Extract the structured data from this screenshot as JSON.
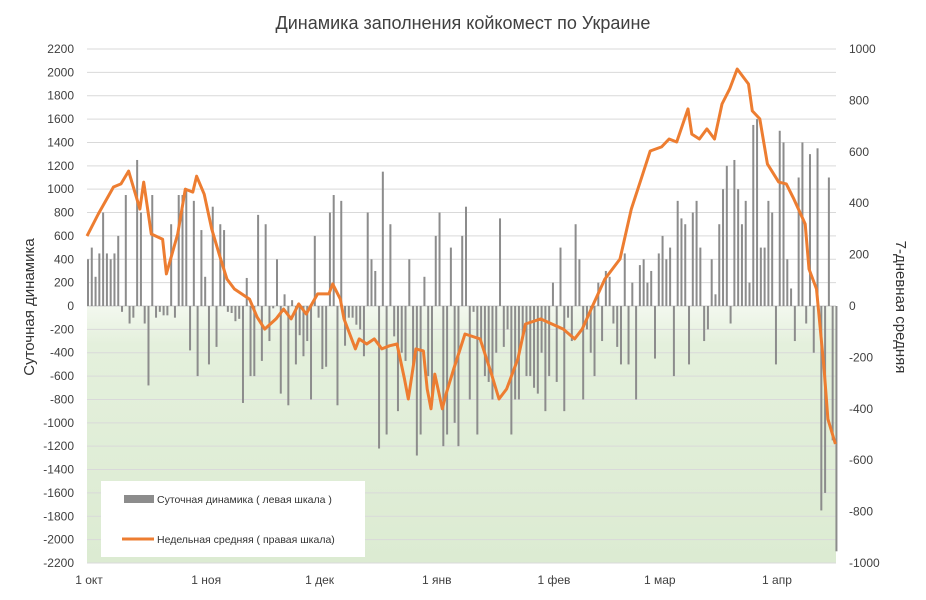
{
  "chart_data": {
    "type": "bar+line",
    "title": "Динамика заполнения койкомест по Украине",
    "ylabel_left": "Суточная динамика",
    "ylabel_right": "7-дневная средняя",
    "ylim_left": [
      -2200,
      2200
    ],
    "ylim_right": [
      -1000,
      1000
    ],
    "yticks_left": [
      "2200",
      "2000",
      "1800",
      "1600",
      "1400",
      "1200",
      "1000",
      "800",
      "600",
      "400",
      "200",
      "0",
      "-200",
      "-400",
      "-600",
      "-800",
      "-1000",
      "-1200",
      "-1400",
      "-1600",
      "-1800",
      "-2000",
      "-2200"
    ],
    "yticks_right": [
      "1000",
      "800",
      "600",
      "400",
      "200",
      "0",
      "-200",
      "-400",
      "-600",
      "-800",
      "-1000"
    ],
    "xticks": [
      {
        "label": "1 окт",
        "date": "10-01"
      },
      {
        "label": "1 ноя",
        "date": "11-01"
      },
      {
        "label": "1 дек",
        "date": "12-01"
      },
      {
        "label": "1 янв",
        "date": "01-01"
      },
      {
        "label": "1 фев",
        "date": "02-01"
      },
      {
        "label": "1 мар",
        "date": "03-01"
      },
      {
        "label": "1 апр",
        "date": "04-01"
      }
    ],
    "grid": true,
    "legend_position": "bottom-left",
    "colors": {
      "bars": "#8c8c8c",
      "line": "#ed7d31",
      "negative_fill": "#e2efda"
    },
    "series": [
      {
        "name": "Суточная динамика ( левая шкала )",
        "axis": "left",
        "type": "bar",
        "first_date": "10-01",
        "values": [
          400,
          500,
          250,
          450,
          800,
          450,
          400,
          450,
          600,
          -50,
          950,
          -150,
          -100,
          1250,
          800,
          -150,
          -680,
          950,
          -100,
          -50,
          -80,
          -80,
          700,
          -100,
          950,
          950,
          1000,
          -380,
          900,
          -600,
          650,
          250,
          -500,
          850,
          -350,
          700,
          650,
          -50,
          -60,
          -130,
          -110,
          -830,
          240,
          -600,
          -600,
          780,
          -470,
          700,
          -300,
          -20,
          400,
          -750,
          100,
          -850,
          50,
          -500,
          -250,
          -430,
          -300,
          -800,
          600,
          -100,
          -540,
          -520,
          800,
          950,
          -850,
          900,
          -340,
          -100,
          -100,
          -160,
          -200,
          -430,
          800,
          400,
          300,
          -1220,
          1150,
          -1100,
          700,
          -260,
          -900,
          -400,
          -470,
          400,
          -550,
          -1280,
          -1100,
          250,
          -600,
          -850,
          600,
          800,
          -1200,
          -1100,
          500,
          -1000,
          -1200,
          600,
          850,
          -800,
          -50,
          -1100,
          -300,
          -600,
          -650,
          -800,
          -400,
          750,
          -350,
          -200,
          -1100,
          -800,
          -800,
          -250,
          -600,
          -600,
          -700,
          -750,
          -400,
          -900,
          -600,
          200,
          -650,
          500,
          -900,
          -100,
          -300,
          700,
          400,
          -800,
          -200,
          -400,
          -600,
          200,
          -300,
          300,
          250,
          -150,
          -350,
          -500,
          450,
          -500,
          200,
          -800,
          350,
          400,
          200,
          300,
          -450,
          450,
          600,
          400,
          500,
          -600,
          900,
          750,
          700,
          -500,
          800,
          900,
          500,
          -300,
          -200,
          400,
          100,
          700,
          1000,
          1200,
          -150,
          1250,
          1000,
          700,
          900,
          200,
          1550,
          1600,
          500,
          500,
          900,
          800,
          -500,
          1500,
          1400,
          400,
          150,
          -300,
          1100,
          1400,
          -150,
          1300,
          -400,
          1350,
          -1750,
          -1600,
          1100,
          -1150,
          -2100
        ]
      },
      {
        "name": "Недельная средняя ( правая шкала)",
        "axis": "right",
        "type": "line",
        "points": [
          [
            "10-01",
            272
          ],
          [
            "10-04",
            358
          ],
          [
            "10-08",
            463
          ],
          [
            "10-10",
            475
          ],
          [
            "10-12",
            525
          ],
          [
            "10-15",
            377
          ],
          [
            "10-16",
            482
          ],
          [
            "10-18",
            280
          ],
          [
            "10-21",
            260
          ],
          [
            "10-22",
            125
          ],
          [
            "10-25",
            280
          ],
          [
            "10-27",
            455
          ],
          [
            "10-29",
            443
          ],
          [
            "10-30",
            505
          ],
          [
            "11-01",
            435
          ],
          [
            "11-03",
            300
          ],
          [
            "11-05",
            200
          ],
          [
            "11-07",
            105
          ],
          [
            "11-09",
            66
          ],
          [
            "11-13",
            27
          ],
          [
            "11-15",
            -43
          ],
          [
            "11-17",
            -90
          ],
          [
            "11-20",
            -50
          ],
          [
            "11-22",
            -12
          ],
          [
            "11-24",
            -50
          ],
          [
            "11-26",
            8
          ],
          [
            "11-28",
            -31
          ],
          [
            "12-01",
            47
          ],
          [
            "12-04",
            47
          ],
          [
            "12-05",
            86
          ],
          [
            "12-07",
            27
          ],
          [
            "12-08",
            -50
          ],
          [
            "12-11",
            -167
          ],
          [
            "12-12",
            -128
          ],
          [
            "12-14",
            -148
          ],
          [
            "12-16",
            -128
          ],
          [
            "12-18",
            -167
          ],
          [
            "12-20",
            -155
          ],
          [
            "12-22",
            -148
          ],
          [
            "12-24",
            -284
          ],
          [
            "12-25",
            -362
          ],
          [
            "12-27",
            -167
          ],
          [
            "12-29",
            -175
          ],
          [
            "12-30",
            -323
          ],
          [
            "12-31",
            -400
          ],
          [
            "01-01",
            -265
          ],
          [
            "01-03",
            -400
          ],
          [
            "01-04",
            -342
          ],
          [
            "01-06",
            -245
          ],
          [
            "01-09",
            -109
          ],
          [
            "01-13",
            -128
          ],
          [
            "01-16",
            -265
          ],
          [
            "01-18",
            -362
          ],
          [
            "01-20",
            -323
          ],
          [
            "01-23",
            -206
          ],
          [
            "01-25",
            -70
          ],
          [
            "01-29",
            -50
          ],
          [
            "02-01",
            -70
          ],
          [
            "02-04",
            -90
          ],
          [
            "02-07",
            -128
          ],
          [
            "02-09",
            -90
          ],
          [
            "02-12",
            8
          ],
          [
            "02-15",
            105
          ],
          [
            "02-19",
            183
          ],
          [
            "02-22",
            377
          ],
          [
            "02-25",
            513
          ],
          [
            "02-27",
            603
          ],
          [
            "03-02",
            619
          ],
          [
            "03-04",
            650
          ],
          [
            "03-06",
            638
          ],
          [
            "03-09",
            767
          ],
          [
            "03-10",
            669
          ],
          [
            "03-12",
            650
          ],
          [
            "03-14",
            689
          ],
          [
            "03-16",
            650
          ],
          [
            "03-18",
            786
          ],
          [
            "03-20",
            844
          ],
          [
            "03-22",
            922
          ],
          [
            "03-25",
            864
          ],
          [
            "03-26",
            759
          ],
          [
            "03-28",
            728
          ],
          [
            "03-30",
            553
          ],
          [
            "04-02",
            482
          ],
          [
            "04-04",
            475
          ],
          [
            "04-06",
            416
          ],
          [
            "04-09",
            319
          ],
          [
            "04-10",
            144
          ],
          [
            "04-12",
            66
          ],
          [
            "04-14",
            -245
          ],
          [
            "04-15",
            -440
          ],
          [
            "04-17",
            -537
          ]
        ]
      }
    ]
  }
}
